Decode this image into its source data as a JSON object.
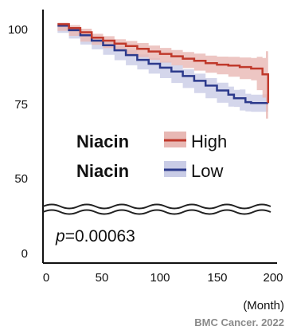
{
  "chart_data": {
    "type": "line",
    "title": "",
    "xlabel": "(Month)",
    "ylabel": "",
    "xlim": [
      0,
      200
    ],
    "ylim": [
      0,
      100
    ],
    "axis_break": "between 0 and 50",
    "x_ticks": [
      "0",
      "50",
      "100",
      "150",
      "200"
    ],
    "y_ticks": [
      "0",
      "50",
      "75",
      "100"
    ],
    "grid": false,
    "legend_position": "center-left",
    "group_label": "Niacin",
    "series": [
      {
        "name": "High",
        "color": "#c0392b",
        "band_color": "#e8b8b4",
        "x": [
          10,
          20,
          30,
          40,
          50,
          60,
          70,
          80,
          90,
          100,
          110,
          120,
          130,
          140,
          150,
          160,
          170,
          180,
          185,
          190,
          193,
          195
        ],
        "y": [
          101.5,
          100.2,
          98.8,
          97.0,
          96.0,
          95.0,
          94.2,
          93.3,
          92.4,
          91.6,
          90.8,
          90.0,
          89.3,
          88.5,
          88.0,
          87.7,
          87.2,
          86.7,
          86.7,
          84.8,
          84.8,
          75.2
        ],
        "lower": [
          100.8,
          99.3,
          97.6,
          95.7,
          94.6,
          93.5,
          92.5,
          91.5,
          90.5,
          89.6,
          88.7,
          87.8,
          86.9,
          86.0,
          85.3,
          84.8,
          84.0,
          83.2,
          82.8,
          79.5,
          77.0,
          70.0
        ],
        "upper": [
          102.0,
          101.2,
          100.0,
          98.3,
          97.5,
          96.5,
          95.9,
          95.2,
          94.4,
          93.6,
          92.9,
          92.2,
          91.7,
          91.0,
          90.7,
          90.6,
          90.4,
          90.2,
          90.6,
          90.2,
          92.5,
          92.5
        ]
      },
      {
        "name": "Low",
        "color": "#2c3a8c",
        "band_color": "#c9cce6",
        "x": [
          10,
          20,
          30,
          40,
          50,
          60,
          70,
          80,
          90,
          100,
          110,
          120,
          130,
          140,
          150,
          160,
          165,
          170,
          175,
          180,
          190,
          195
        ],
        "y": [
          101.0,
          99.5,
          97.8,
          96.0,
          94.5,
          92.8,
          91.2,
          89.6,
          88.3,
          87.0,
          85.7,
          84.2,
          82.6,
          81.0,
          79.4,
          78.0,
          76.8,
          76.8,
          75.5,
          75.2,
          75.2,
          75.2
        ],
        "lower": [
          100.3,
          98.6,
          96.7,
          94.7,
          93.1,
          91.3,
          89.5,
          87.8,
          86.4,
          85.0,
          83.5,
          81.9,
          80.2,
          78.5,
          76.8,
          75.3,
          74.0,
          73.9,
          72.7,
          72.4,
          72.3,
          72.3
        ],
        "upper": [
          101.7,
          100.4,
          98.9,
          97.3,
          95.9,
          94.3,
          92.9,
          91.4,
          90.2,
          89.0,
          87.9,
          86.5,
          85.0,
          83.5,
          82.0,
          80.7,
          79.6,
          79.7,
          78.3,
          78.0,
          78.1,
          78.1
        ]
      }
    ],
    "annotation": "p=0.00063",
    "p_label": "p",
    "p_value": "=0.00063"
  },
  "source": "BMC Cancer. 2022"
}
